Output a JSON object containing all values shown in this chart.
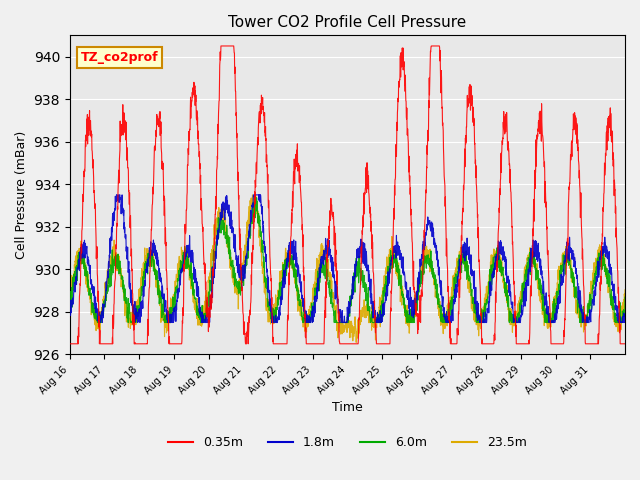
{
  "title": "Tower CO2 Profile Cell Pressure",
  "xlabel": "Time",
  "ylabel": "Cell Pressure (mBar)",
  "ylim": [
    926,
    941
  ],
  "yticks": [
    926,
    928,
    930,
    932,
    934,
    936,
    938,
    940
  ],
  "series_colors": [
    "#ff0000",
    "#0000cc",
    "#00aa00",
    "#ddaa00"
  ],
  "series_labels": [
    "0.35m",
    "1.8m",
    "6.0m",
    "23.5m"
  ],
  "annotation_text": "TZ_co2prof",
  "annotation_bg": "#ffffcc",
  "annotation_border": "#cc8800",
  "plot_bg": "#e8e8e8",
  "fig_bg": "#f0f0f0",
  "n_days": 16,
  "xtick_labels": [
    "Aug 16",
    "Aug 17",
    "Aug 18",
    "Aug 19",
    "Aug 20",
    "Aug 21",
    "Aug 22",
    "Aug 23",
    "Aug 24",
    "Aug 25",
    "Aug 26",
    "Aug 27",
    "Aug 28",
    "Aug 29",
    "Aug 30",
    "Aug 31"
  ]
}
